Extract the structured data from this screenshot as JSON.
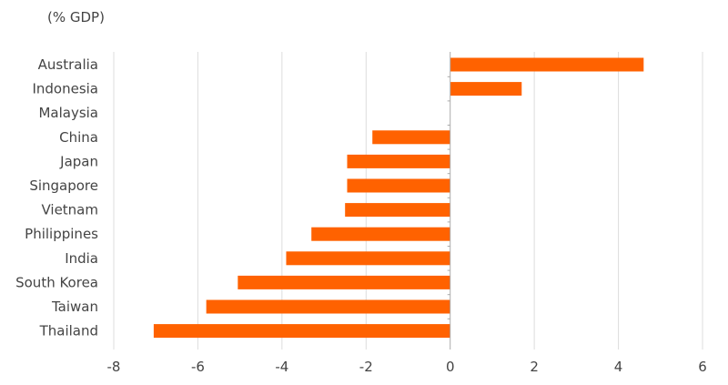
{
  "chart_data": {
    "type": "bar",
    "orientation": "horizontal",
    "unit_label": "(% GDP)",
    "categories": [
      "Australia",
      "Indonesia",
      "Malaysia",
      "China",
      "Japan",
      "Singapore",
      "Vietnam",
      "Philippines",
      "India",
      "South Korea",
      "Taiwan",
      "Thailand"
    ],
    "values": [
      4.6,
      1.7,
      0,
      -1.85,
      -2.45,
      -2.45,
      -2.5,
      -3.3,
      -3.9,
      -5.05,
      -5.8,
      -7.05
    ],
    "xlim": [
      -8,
      6
    ],
    "xticks": [
      -8,
      -6,
      -4,
      -2,
      0,
      2,
      4,
      6
    ],
    "grid": "vertical",
    "bar_color": "#ff6200",
    "grid_color": "#dddddd",
    "axis_color": "#aaaaaa"
  }
}
